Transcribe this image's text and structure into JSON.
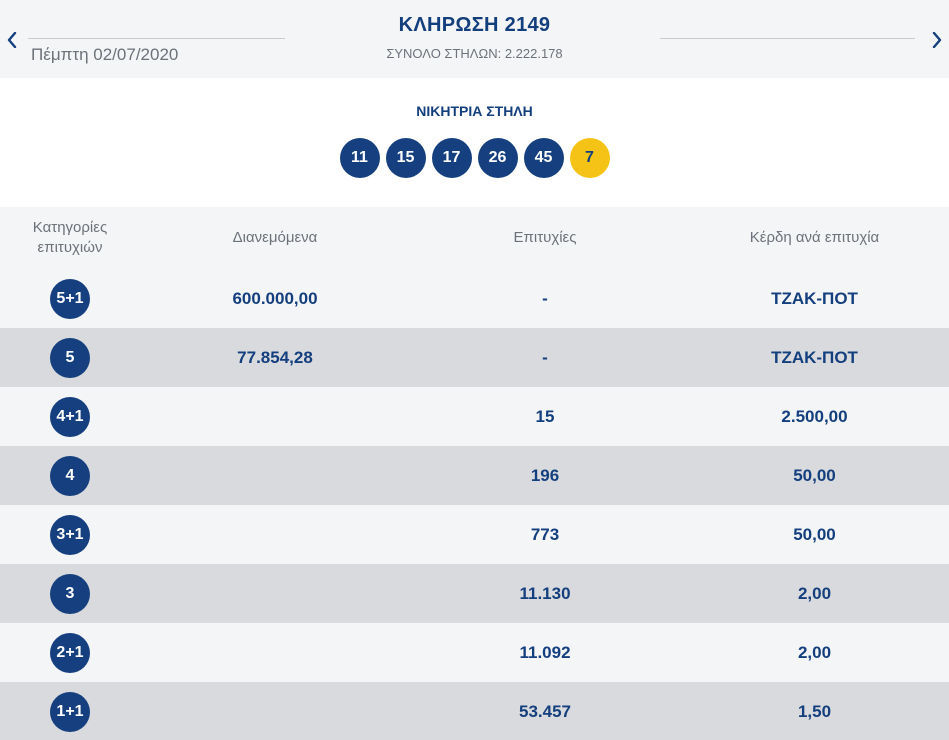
{
  "header": {
    "date": "Πέμπτη 02/07/2020",
    "title": "ΚΛΗΡΩΣΗ 2149",
    "total_columns": "ΣΥΝΟΛΟ ΣΤΗΛΩΝ: 2.222.178"
  },
  "winning": {
    "label": "ΝΙΚΗΤΡΙΑ ΣΤΗΛΗ",
    "numbers": [
      "11",
      "15",
      "17",
      "26",
      "45"
    ],
    "bonus": "7"
  },
  "table": {
    "headers": {
      "category": "Κατηγορίες επιτυχιών",
      "distributed": "Διανεμόμενα",
      "winners": "Επιτυχίες",
      "prize": "Κέρδη ανά επιτυχία"
    },
    "rows": [
      {
        "category": "5+1",
        "distributed": "600.000,00",
        "winners": "-",
        "prize": "ΤΖΑΚ-ΠΟΤ"
      },
      {
        "category": "5",
        "distributed": "77.854,28",
        "winners": "-",
        "prize": "ΤΖΑΚ-ΠΟΤ"
      },
      {
        "category": "4+1",
        "distributed": "",
        "winners": "15",
        "prize": "2.500,00"
      },
      {
        "category": "4",
        "distributed": "",
        "winners": "196",
        "prize": "50,00"
      },
      {
        "category": "3+1",
        "distributed": "",
        "winners": "773",
        "prize": "50,00"
      },
      {
        "category": "3",
        "distributed": "",
        "winners": "11.130",
        "prize": "2,00"
      },
      {
        "category": "2+1",
        "distributed": "",
        "winners": "11.092",
        "prize": "2,00"
      },
      {
        "category": "1+1",
        "distributed": "",
        "winners": "53.457",
        "prize": "1,50"
      }
    ]
  },
  "icons": {
    "prev": "chevron-left-icon",
    "next": "chevron-right-icon"
  },
  "colors": {
    "primary": "#153f7e",
    "bonus": "#f5c316"
  }
}
